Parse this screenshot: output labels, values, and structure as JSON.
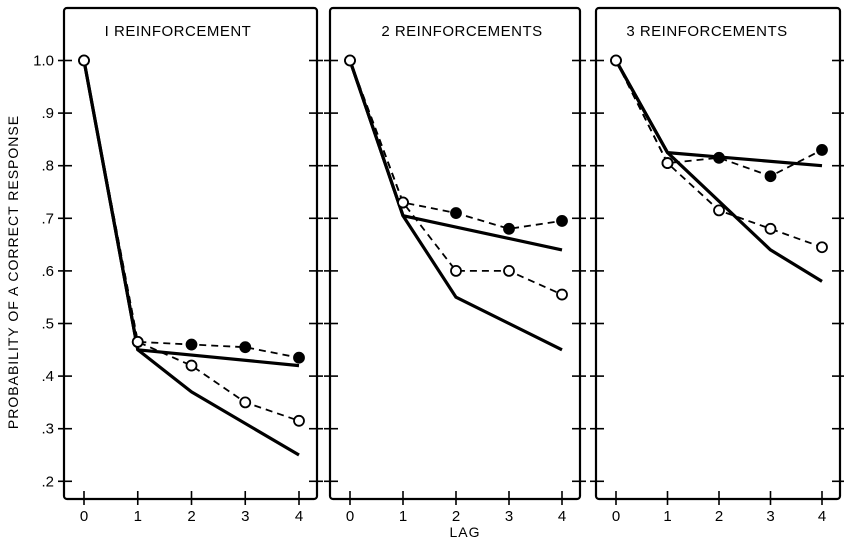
{
  "chart_data": {
    "type": "line",
    "ylabel": "PROBABILITY OF A CORRECT RESPONSE",
    "xlabel": "LAG",
    "ylim": [
      0.17,
      1.09
    ],
    "y_ticks": [
      1.0,
      0.9,
      0.8,
      0.7,
      0.6,
      0.5,
      0.4,
      0.3,
      0.2
    ],
    "y_tick_labels": [
      "1.0",
      ".9",
      ".8",
      ".7",
      ".6",
      ".5",
      ".4",
      ".3",
      ".2"
    ],
    "x": [
      0,
      1,
      2,
      3,
      4
    ],
    "x_tick_labels": [
      "0",
      "1",
      "2",
      "3",
      "4"
    ],
    "grid": false,
    "panels": [
      {
        "title": "I REINFORCEMENT",
        "series": [
          {
            "style": "solid-upper",
            "color": "#000000",
            "x": [
              0,
              1,
              4
            ],
            "y": [
              1.0,
              0.45,
              0.42
            ]
          },
          {
            "style": "solid-lower",
            "color": "#000000",
            "x": [
              0,
              1,
              2,
              4
            ],
            "y": [
              1.0,
              0.45,
              0.37,
              0.25
            ]
          },
          {
            "style": "dashed-filled-circles",
            "color": "#000000",
            "x": [
              0,
              1,
              2,
              3,
              4
            ],
            "y": [
              1.0,
              0.465,
              0.46,
              0.455,
              0.435
            ]
          },
          {
            "style": "dashed-open-circles",
            "color": "#000000",
            "x": [
              0,
              1,
              2,
              3,
              4
            ],
            "y": [
              1.0,
              0.465,
              0.42,
              0.35,
              0.315
            ]
          }
        ]
      },
      {
        "title": "2 REINFORCEMENTS",
        "series": [
          {
            "style": "solid-upper",
            "color": "#000000",
            "x": [
              0,
              1,
              4
            ],
            "y": [
              1.0,
              0.705,
              0.64
            ]
          },
          {
            "style": "solid-lower",
            "color": "#000000",
            "x": [
              0,
              1,
              2,
              4
            ],
            "y": [
              1.0,
              0.705,
              0.55,
              0.45
            ]
          },
          {
            "style": "dashed-filled-circles",
            "color": "#000000",
            "x": [
              0,
              1,
              2,
              3,
              4
            ],
            "y": [
              1.0,
              0.73,
              0.71,
              0.68,
              0.695
            ]
          },
          {
            "style": "dashed-open-circles",
            "color": "#000000",
            "x": [
              0,
              1,
              2,
              3,
              4
            ],
            "y": [
              1.0,
              0.73,
              0.6,
              0.6,
              0.555
            ]
          }
        ]
      },
      {
        "title": "3 REINFORCEMENTS",
        "series": [
          {
            "style": "solid-upper",
            "color": "#000000",
            "x": [
              0,
              1,
              4
            ],
            "y": [
              1.0,
              0.825,
              0.8
            ]
          },
          {
            "style": "solid-lower",
            "color": "#000000",
            "x": [
              0,
              1,
              3,
              4
            ],
            "y": [
              1.0,
              0.825,
              0.64,
              0.58
            ]
          },
          {
            "style": "dashed-filled-circles",
            "color": "#000000",
            "x": [
              0,
              1,
              2,
              3,
              4
            ],
            "y": [
              1.0,
              0.805,
              0.815,
              0.78,
              0.83
            ]
          },
          {
            "style": "dashed-open-circles",
            "color": "#000000",
            "x": [
              0,
              1,
              2,
              3,
              4
            ],
            "y": [
              1.0,
              0.805,
              0.715,
              0.68,
              0.645
            ]
          }
        ]
      }
    ]
  }
}
